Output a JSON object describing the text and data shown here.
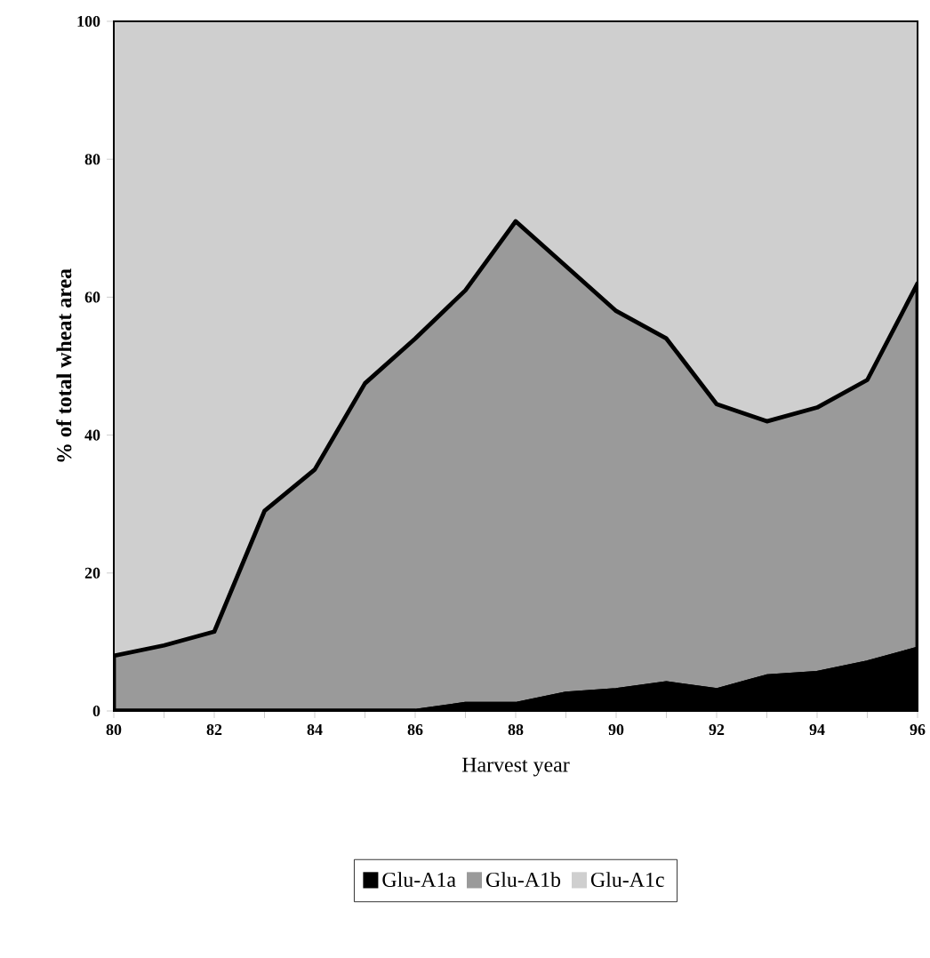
{
  "chart_data": {
    "type": "area",
    "stacked": true,
    "xlabel": "Harvest year",
    "ylabel": "% of total wheat area",
    "x": [
      80,
      81,
      82,
      83,
      84,
      85,
      86,
      87,
      88,
      89,
      90,
      91,
      92,
      93,
      94,
      95,
      96
    ],
    "series": [
      {
        "name": "Glu-A1a",
        "color": "#000000",
        "values": [
          0,
          0,
          0,
          0,
          0,
          0,
          0,
          1,
          1,
          2.5,
          3,
          4,
          3,
          5,
          5.5,
          7,
          9
        ]
      },
      {
        "name": "Glu-A1b",
        "color": "#9a9a9a",
        "values": [
          8,
          9.5,
          11.5,
          29,
          35,
          47.5,
          54,
          60,
          70,
          62,
          55,
          50,
          41.5,
          37,
          38.5,
          41,
          53
        ]
      },
      {
        "name": "Glu-A1c",
        "color": "#cfcfcf",
        "values": [
          92,
          90.5,
          88.5,
          71,
          65,
          52.5,
          46,
          39,
          29,
          35.5,
          42,
          46,
          55.5,
          58,
          56,
          52,
          38
        ]
      }
    ],
    "xlim": [
      80,
      96
    ],
    "ylim": [
      0,
      100
    ],
    "xticks": [
      80,
      {
        "value": 81,
        "label": null
      },
      82,
      {
        "value": 83,
        "label": null
      },
      84,
      {
        "value": 85,
        "label": null
      },
      86,
      {
        "value": 87,
        "label": null
      },
      88,
      {
        "value": 89,
        "label": null
      },
      90,
      {
        "value": 91,
        "label": null
      },
      92,
      {
        "value": 93,
        "label": null
      },
      94,
      {
        "value": 95,
        "label": null
      },
      96
    ],
    "yticks": [
      0,
      20,
      40,
      60,
      80,
      100
    ],
    "legend": "bottom"
  }
}
